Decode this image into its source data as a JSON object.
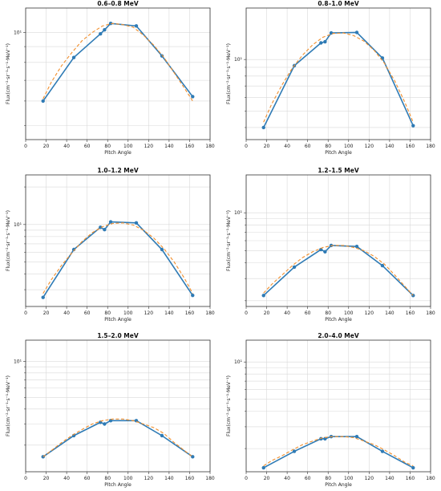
{
  "chart_data": [
    {
      "type": "line",
      "title": "0.6–0.8 MeV",
      "xlabel": "Pitch Angle",
      "ylabel": "Flux(cm⁻²·sr⁻¹·s⁻¹·MeV⁻¹)",
      "xlim": [
        0,
        180
      ],
      "x_ticks": [
        0,
        20,
        40,
        60,
        80,
        100,
        120,
        140,
        160,
        180
      ],
      "yscale": "log",
      "ylim": [
        4.5,
        12
      ],
      "y_ticks": [
        10
      ],
      "y_tick_labels": [
        "10¹"
      ],
      "grid": true,
      "series": [
        {
          "kind": "measured",
          "color": "#2f7bb5",
          "x": [
            17,
            47,
            73,
            77,
            83,
            108,
            133,
            163
          ],
          "y": [
            6.0,
            8.3,
            9.9,
            10.2,
            10.7,
            10.5,
            8.4,
            6.2
          ]
        },
        {
          "kind": "fit",
          "color": "#f28e2b",
          "x": [
            17,
            25,
            35,
            45,
            55,
            65,
            75,
            85,
            95,
            105,
            115,
            125,
            135,
            145,
            155,
            163
          ],
          "y": [
            6.1,
            6.9,
            7.8,
            8.6,
            9.4,
            10.0,
            10.5,
            10.7,
            10.6,
            10.4,
            9.8,
            9.1,
            8.3,
            7.4,
            6.6,
            6.0
          ]
        }
      ]
    },
    {
      "type": "line",
      "title": "0.8–1.0 MeV",
      "xlabel": "Pitch Angle",
      "ylabel": "Flux(cm⁻²·sr⁻¹·s⁻¹·MeV⁻¹)",
      "xlim": [
        0,
        180
      ],
      "x_ticks": [
        0,
        20,
        40,
        60,
        80,
        100,
        120,
        140,
        160,
        180
      ],
      "yscale": "log",
      "ylim": [
        3.4,
        20
      ],
      "y_ticks": [
        10
      ],
      "y_tick_labels": [
        "10¹"
      ],
      "grid": true,
      "series": [
        {
          "kind": "measured",
          "color": "#2f7bb5",
          "x": [
            17,
            47,
            73,
            77,
            83,
            108,
            133,
            163
          ],
          "y": [
            4.0,
            9.2,
            12.5,
            12.7,
            14.3,
            14.4,
            10.2,
            4.1
          ]
        },
        {
          "kind": "fit",
          "color": "#f28e2b",
          "x": [
            17,
            25,
            35,
            45,
            55,
            65,
            75,
            85,
            95,
            105,
            115,
            125,
            135,
            145,
            155,
            163
          ],
          "y": [
            4.3,
            5.5,
            7.1,
            8.9,
            10.6,
            12.2,
            13.5,
            14.2,
            14.3,
            13.8,
            12.8,
            11.3,
            9.5,
            7.5,
            5.6,
            4.3
          ]
        }
      ]
    },
    {
      "type": "line",
      "title": "1.0–1.2 MeV",
      "xlabel": "Pitch Angle",
      "ylabel": "Flux(cm⁻²·sr⁻¹·s⁻¹·MeV⁻¹)",
      "xlim": [
        0,
        180
      ],
      "x_ticks": [
        0,
        20,
        40,
        60,
        80,
        100,
        120,
        140,
        160,
        180
      ],
      "yscale": "log",
      "ylim": [
        2.2,
        25
      ],
      "y_ticks": [
        10
      ],
      "y_tick_labels": [
        "10¹"
      ],
      "grid": true,
      "series": [
        {
          "kind": "measured",
          "color": "#2f7bb5",
          "x": [
            17,
            47,
            73,
            77,
            83,
            108,
            133,
            163
          ],
          "y": [
            2.6,
            6.3,
            9.5,
            9.1,
            10.5,
            10.3,
            6.3,
            2.7
          ]
        },
        {
          "kind": "fit",
          "color": "#f28e2b",
          "x": [
            17,
            25,
            35,
            45,
            55,
            65,
            75,
            85,
            95,
            105,
            115,
            125,
            135,
            145,
            155,
            163
          ],
          "y": [
            2.8,
            3.6,
            4.7,
            5.9,
            7.3,
            8.6,
            9.6,
            10.2,
            10.3,
            9.9,
            9.0,
            7.8,
            6.4,
            5.0,
            3.7,
            2.8
          ]
        }
      ]
    },
    {
      "type": "line",
      "title": "1.2–1.5 MeV",
      "xlabel": "Pitch Angle",
      "ylabel": "Flux(cm⁻²·sr⁻¹·s⁻¹·MeV⁻¹)",
      "xlim": [
        0,
        180
      ],
      "x_ticks": [
        0,
        20,
        40,
        60,
        80,
        100,
        120,
        140,
        160,
        180
      ],
      "yscale": "log",
      "ylim": [
        1.8,
        20
      ],
      "y_ticks": [
        10
      ],
      "y_tick_labels": [
        "10¹"
      ],
      "grid": true,
      "series": [
        {
          "kind": "measured",
          "color": "#2f7bb5",
          "x": [
            17,
            47,
            73,
            77,
            83,
            108,
            133,
            163
          ],
          "y": [
            2.2,
            3.7,
            5.1,
            4.9,
            5.5,
            5.4,
            3.8,
            2.2
          ]
        },
        {
          "kind": "fit",
          "color": "#f28e2b",
          "x": [
            17,
            25,
            35,
            45,
            55,
            65,
            75,
            85,
            95,
            105,
            115,
            125,
            135,
            145,
            155,
            163
          ],
          "y": [
            2.3,
            2.7,
            3.2,
            3.8,
            4.4,
            4.9,
            5.3,
            5.5,
            5.5,
            5.3,
            5.0,
            4.5,
            3.9,
            3.2,
            2.6,
            2.2
          ]
        }
      ]
    },
    {
      "type": "line",
      "title": "1.5–2.0 MeV",
      "xlabel": "Pitch Angle",
      "ylabel": "Flux(cm⁻²·sr⁻¹·s⁻¹·MeV⁻¹)",
      "xlim": [
        0,
        180
      ],
      "x_ticks": [
        0,
        20,
        40,
        60,
        80,
        100,
        120,
        140,
        160,
        180
      ],
      "yscale": "log",
      "ylim": [
        1.2,
        15
      ],
      "y_ticks": [
        10
      ],
      "y_tick_labels": [
        "10¹"
      ],
      "grid": true,
      "series": [
        {
          "kind": "measured",
          "color": "#2f7bb5",
          "x": [
            17,
            47,
            73,
            77,
            83,
            108,
            133,
            163
          ],
          "y": [
            1.6,
            2.4,
            3.1,
            3.0,
            3.2,
            3.2,
            2.4,
            1.6
          ]
        },
        {
          "kind": "fit",
          "color": "#f28e2b",
          "x": [
            17,
            25,
            35,
            45,
            55,
            65,
            75,
            85,
            95,
            105,
            115,
            125,
            135,
            145,
            155,
            163
          ],
          "y": [
            1.6,
            1.8,
            2.1,
            2.4,
            2.7,
            3.0,
            3.2,
            3.3,
            3.3,
            3.2,
            3.0,
            2.8,
            2.5,
            2.1,
            1.8,
            1.6
          ]
        }
      ]
    },
    {
      "type": "line",
      "title": "2.0–4.0 MeV",
      "xlabel": "Pitch Angle",
      "ylabel": "Flux(cm⁻²·sr⁻¹·s⁻¹·MeV⁻¹)",
      "xlim": [
        0,
        180
      ],
      "x_ticks": [
        0,
        20,
        40,
        60,
        80,
        100,
        120,
        140,
        160,
        180
      ],
      "yscale": "log",
      "ylim": [
        1.3,
        15
      ],
      "y_ticks": [
        10
      ],
      "y_tick_labels": [
        "10¹"
      ],
      "grid": true,
      "series": [
        {
          "kind": "measured",
          "color": "#2f7bb5",
          "x": [
            17,
            47,
            73,
            77,
            83,
            108,
            133,
            163
          ],
          "y": [
            1.4,
            1.9,
            2.4,
            2.4,
            2.5,
            2.5,
            1.9,
            1.4
          ]
        },
        {
          "kind": "fit",
          "color": "#f28e2b",
          "x": [
            17,
            25,
            35,
            45,
            55,
            65,
            75,
            85,
            95,
            105,
            115,
            125,
            135,
            145,
            155,
            163
          ],
          "y": [
            1.45,
            1.6,
            1.75,
            1.95,
            2.15,
            2.3,
            2.45,
            2.5,
            2.5,
            2.45,
            2.3,
            2.15,
            1.95,
            1.75,
            1.55,
            1.45
          ]
        }
      ]
    }
  ]
}
